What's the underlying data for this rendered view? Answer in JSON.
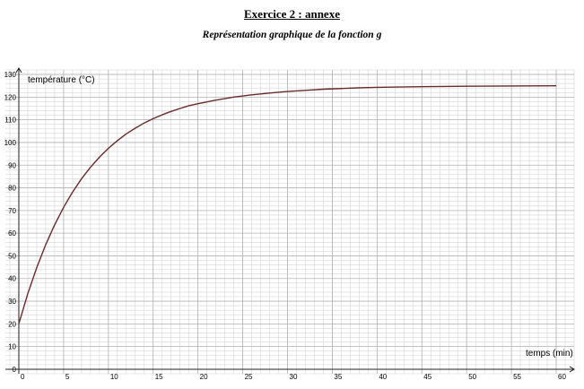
{
  "header": {
    "top_right_text": "",
    "title": "Exercice 2 : annexe",
    "subtitle": "Représentation graphique de la fonction g"
  },
  "chart_data": {
    "type": "line",
    "title": "Représentation graphique de la fonction g",
    "xlabel": "temps (min)",
    "ylabel": "température (°C)",
    "xlim": [
      -1.5,
      62
    ],
    "ylim": [
      -2,
      132
    ],
    "x_major_ticks": [
      0,
      5,
      10,
      15,
      20,
      25,
      30,
      35,
      40,
      45,
      50,
      55,
      60
    ],
    "y_major_ticks": [
      0,
      10,
      20,
      30,
      40,
      50,
      60,
      70,
      80,
      90,
      100,
      110,
      120,
      130
    ],
    "x_minor_step": 1,
    "y_minor_step": 2,
    "grid": true,
    "series": [
      {
        "color": "#6b2a2a",
        "x": [
          0,
          1,
          2,
          3,
          4,
          5,
          6,
          7,
          8,
          9,
          10,
          11,
          12,
          13,
          14,
          15,
          16,
          17,
          18,
          19,
          20,
          22,
          24,
          26,
          28,
          30,
          32,
          34,
          36,
          38,
          40,
          45,
          50,
          55,
          60
        ],
        "y": [
          20,
          33.3,
          44.8,
          54.9,
          63.7,
          71.4,
          78.1,
          84.0,
          89.1,
          93.5,
          97.4,
          100.8,
          103.8,
          106.3,
          108.6,
          110.5,
          112.2,
          113.7,
          115.0,
          116.2,
          117.1,
          118.7,
          120.0,
          121.0,
          121.8,
          122.5,
          123.0,
          123.5,
          123.8,
          124.1,
          124.3,
          124.6,
          124.8,
          124.9,
          125.0
        ]
      }
    ]
  }
}
